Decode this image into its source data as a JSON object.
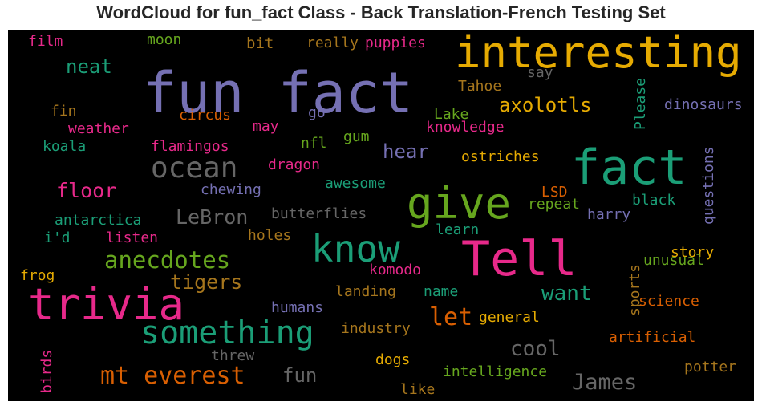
{
  "chart_data": {
    "type": "wordcloud",
    "title": "WordCloud for fun_fact Class - Back Translation-French Testing Set",
    "colors": {
      "purple": "#7570b3",
      "green": "#1b9e77",
      "orange": "#d95f02",
      "pink": "#e7298a",
      "olive": "#66a61e",
      "gold": "#e6ab02",
      "brown": "#a6761d",
      "gray": "#666666"
    },
    "words": [
      {
        "text": "fun fact",
        "color": "#7570b3"
      },
      {
        "text": "interesting",
        "color": "#e6ab02"
      },
      {
        "text": "fact",
        "color": "#1b9e77"
      },
      {
        "text": "Tell",
        "color": "#e7298a"
      },
      {
        "text": "trivia",
        "color": "#e7298a"
      },
      {
        "text": "give",
        "color": "#66a61e"
      },
      {
        "text": "know",
        "color": "#1b9e77"
      },
      {
        "text": "something",
        "color": "#1b9e77"
      },
      {
        "text": "ocean",
        "color": "#666666"
      },
      {
        "text": "anecdotes",
        "color": "#66a61e"
      },
      {
        "text": "mt everest",
        "color": "#d95f02"
      },
      {
        "text": "axolotls",
        "color": "#e6ab02"
      },
      {
        "text": "floor",
        "color": "#e7298a"
      },
      {
        "text": "LeBron",
        "color": "#666666"
      },
      {
        "text": "neat",
        "color": "#1b9e77"
      },
      {
        "text": "hear",
        "color": "#7570b3"
      },
      {
        "text": "tigers",
        "color": "#a6761d"
      },
      {
        "text": "want",
        "color": "#1b9e77"
      },
      {
        "text": "let",
        "color": "#d95f02"
      },
      {
        "text": "cool",
        "color": "#666666"
      },
      {
        "text": "fun",
        "color": "#666666"
      },
      {
        "text": "James",
        "color": "#666666"
      },
      {
        "text": "film",
        "color": "#e7298a"
      },
      {
        "text": "moon",
        "color": "#66a61e"
      },
      {
        "text": "bit",
        "color": "#a6761d"
      },
      {
        "text": "really",
        "color": "#a6761d"
      },
      {
        "text": "puppies",
        "color": "#e7298a"
      },
      {
        "text": "Tahoe",
        "color": "#a6761d"
      },
      {
        "text": "say",
        "color": "#666666"
      },
      {
        "text": "Please",
        "color": "#1b9e77"
      },
      {
        "text": "dinosaurs",
        "color": "#7570b3"
      },
      {
        "text": "fin",
        "color": "#a6761d"
      },
      {
        "text": "circus",
        "color": "#d95f02"
      },
      {
        "text": "go",
        "color": "#7570b3"
      },
      {
        "text": "Lake",
        "color": "#66a61e"
      },
      {
        "text": "knowledge",
        "color": "#e7298a"
      },
      {
        "text": "weather",
        "color": "#e7298a"
      },
      {
        "text": "may",
        "color": "#e7298a"
      },
      {
        "text": "koala",
        "color": "#1b9e77"
      },
      {
        "text": "flamingos",
        "color": "#e7298a"
      },
      {
        "text": "nfl",
        "color": "#66a61e"
      },
      {
        "text": "gum",
        "color": "#66a61e"
      },
      {
        "text": "ostriches",
        "color": "#e6ab02"
      },
      {
        "text": "questions",
        "color": "#7570b3"
      },
      {
        "text": "dragon",
        "color": "#e7298a"
      },
      {
        "text": "chewing",
        "color": "#7570b3"
      },
      {
        "text": "awesome",
        "color": "#1b9e77"
      },
      {
        "text": "LSD",
        "color": "#d95f02"
      },
      {
        "text": "black",
        "color": "#1b9e77"
      },
      {
        "text": "antarctica",
        "color": "#1b9e77"
      },
      {
        "text": "butterflies",
        "color": "#666666"
      },
      {
        "text": "repeat",
        "color": "#66a61e"
      },
      {
        "text": "harry",
        "color": "#7570b3"
      },
      {
        "text": "i'd",
        "color": "#1b9e77"
      },
      {
        "text": "listen",
        "color": "#e7298a"
      },
      {
        "text": "holes",
        "color": "#a6761d"
      },
      {
        "text": "learn",
        "color": "#1b9e77"
      },
      {
        "text": "story",
        "color": "#e6ab02"
      },
      {
        "text": "frog",
        "color": "#e6ab02"
      },
      {
        "text": "komodo",
        "color": "#e7298a"
      },
      {
        "text": "unusual",
        "color": "#66a61e"
      },
      {
        "text": "sports",
        "color": "#a6761d"
      },
      {
        "text": "landing",
        "color": "#a6761d"
      },
      {
        "text": "name",
        "color": "#1b9e77"
      },
      {
        "text": "humans",
        "color": "#7570b3"
      },
      {
        "text": "science",
        "color": "#d95f02"
      },
      {
        "text": "general",
        "color": "#e6ab02"
      },
      {
        "text": "industry",
        "color": "#a6761d"
      },
      {
        "text": "artificial",
        "color": "#d95f02"
      },
      {
        "text": "birds",
        "color": "#e7298a"
      },
      {
        "text": "threw",
        "color": "#666666"
      },
      {
        "text": "dogs",
        "color": "#e6ab02"
      },
      {
        "text": "intelligence",
        "color": "#66a61e"
      },
      {
        "text": "potter",
        "color": "#a6761d"
      },
      {
        "text": "like",
        "color": "#a6761d"
      }
    ]
  }
}
